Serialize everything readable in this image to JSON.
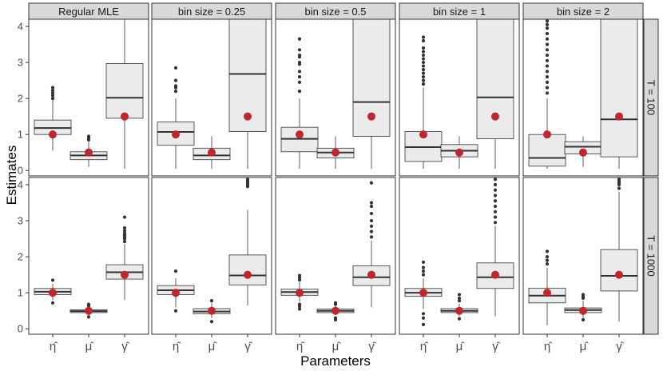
{
  "chart_data": {
    "type": "boxplot",
    "title": "",
    "xlabel": "Parameters",
    "ylabel": "Estimates",
    "ylim": [
      -0.15,
      4.2
    ],
    "yticks": [
      0,
      1,
      2,
      3,
      4
    ],
    "categories": [
      "η̂",
      "μ̂",
      "γ̂"
    ],
    "columns": [
      "Regular MLE",
      "bin size = 0.25",
      "bin size = 0.5",
      "bin size = 1",
      "bin size = 2"
    ],
    "rows": [
      "T = 100",
      "T = 1000"
    ],
    "true_values": [
      1,
      0.5,
      1.5
    ],
    "colors": {
      "panel_bg": "#ffffff",
      "box_fill": "#ebebeb",
      "box_line": "#333333",
      "outlier": "#333333",
      "true_point": "#c0262c",
      "strip_bg": "#d9d9d9",
      "strip_border": "#333333",
      "panel_border": "#333333",
      "axis_text": "#4d4d4d"
    },
    "panels": [
      {
        "row": 0,
        "col": 0,
        "boxes": [
          {
            "q1": 1.0,
            "median": 1.18,
            "q3": 1.4,
            "lo": 0.55,
            "hi": 1.95,
            "outliers": [
              2.0,
              2.08,
              2.15,
              2.22,
              2.3
            ]
          },
          {
            "q1": 0.3,
            "median": 0.42,
            "q3": 0.52,
            "lo": 0.1,
            "hi": 0.8,
            "outliers": [
              0.85,
              0.9,
              0.95
            ]
          },
          {
            "q1": 1.45,
            "median": 2.02,
            "q3": 2.97,
            "lo": 0.05,
            "hi": 4.2,
            "outliers": []
          }
        ]
      },
      {
        "row": 0,
        "col": 1,
        "boxes": [
          {
            "q1": 0.7,
            "median": 1.07,
            "q3": 1.35,
            "lo": 0.05,
            "hi": 2.0,
            "outliers": [
              2.2,
              2.3,
              2.35,
              2.5,
              2.85
            ]
          },
          {
            "q1": 0.3,
            "median": 0.42,
            "q3": 0.62,
            "lo": 0.05,
            "hi": 0.95,
            "outliers": []
          },
          {
            "q1": 1.08,
            "median": 2.68,
            "q3": 4.2,
            "lo": 0.05,
            "hi": 4.2,
            "outliers": []
          }
        ]
      },
      {
        "row": 0,
        "col": 2,
        "boxes": [
          {
            "q1": 0.52,
            "median": 0.88,
            "q3": 1.2,
            "lo": 0.05,
            "hi": 2.0,
            "outliers": [
              2.2,
              2.45,
              2.6,
              2.75,
              2.95,
              3.0,
              3.15,
              3.2,
              3.35,
              3.65
            ]
          },
          {
            "q1": 0.35,
            "median": 0.5,
            "q3": 0.62,
            "lo": 0.05,
            "hi": 0.95,
            "outliers": []
          },
          {
            "q1": 0.95,
            "median": 1.9,
            "q3": 4.2,
            "lo": 0.05,
            "hi": 4.2,
            "outliers": []
          }
        ]
      },
      {
        "row": 0,
        "col": 3,
        "boxes": [
          {
            "q1": 0.25,
            "median": 0.65,
            "q3": 1.08,
            "lo": 0.05,
            "hi": 2.3,
            "outliers": [
              2.4,
              2.5,
              2.6,
              2.7,
              2.8,
              2.9,
              3.0,
              3.1,
              3.2,
              3.3,
              3.4,
              3.6,
              3.7
            ]
          },
          {
            "q1": 0.38,
            "median": 0.55,
            "q3": 0.72,
            "lo": 0.05,
            "hi": 0.95,
            "outliers": []
          },
          {
            "q1": 0.88,
            "median": 2.03,
            "q3": 4.2,
            "lo": 0.05,
            "hi": 4.2,
            "outliers": []
          }
        ]
      },
      {
        "row": 0,
        "col": 4,
        "boxes": [
          {
            "q1": 0.12,
            "median": 0.35,
            "q3": 1.0,
            "lo": 0.05,
            "hi": 2.0,
            "outliers": [
              2.15,
              2.3,
              2.45,
              2.6,
              2.75,
              2.9,
              3.05,
              3.2,
              3.35,
              3.5,
              3.65,
              3.8,
              3.95,
              4.05,
              4.15
            ]
          },
          {
            "q1": 0.46,
            "median": 0.66,
            "q3": 0.8,
            "lo": 0.1,
            "hi": 0.95,
            "outliers": []
          },
          {
            "q1": 0.38,
            "median": 1.42,
            "q3": 4.2,
            "lo": 0.05,
            "hi": 4.2,
            "outliers": []
          }
        ]
      },
      {
        "row": 1,
        "col": 0,
        "boxes": [
          {
            "q1": 0.95,
            "median": 1.03,
            "q3": 1.12,
            "lo": 0.8,
            "hi": 1.25,
            "outliers": [
              0.72,
              1.35
            ]
          },
          {
            "q1": 0.45,
            "median": 0.49,
            "q3": 0.53,
            "lo": 0.38,
            "hi": 0.6,
            "outliers": [
              0.33,
              0.64,
              0.68
            ]
          },
          {
            "q1": 1.38,
            "median": 1.57,
            "q3": 1.78,
            "lo": 0.8,
            "hi": 2.35,
            "outliers": [
              2.42,
              2.5,
              2.55,
              2.6,
              2.65,
              2.72,
              2.8,
              3.1
            ]
          }
        ]
      },
      {
        "row": 1,
        "col": 1,
        "boxes": [
          {
            "q1": 0.95,
            "median": 1.07,
            "q3": 1.2,
            "lo": 0.6,
            "hi": 1.4,
            "outliers": [
              0.5,
              1.6
            ]
          },
          {
            "q1": 0.42,
            "median": 0.48,
            "q3": 0.56,
            "lo": 0.3,
            "hi": 0.72,
            "outliers": [
              0.2,
              0.78
            ]
          },
          {
            "q1": 1.22,
            "median": 1.48,
            "q3": 2.05,
            "lo": 0.65,
            "hi": 3.3,
            "outliers": [
              3.95,
              4.0,
              4.05,
              4.1,
              4.15
            ]
          }
        ]
      },
      {
        "row": 1,
        "col": 2,
        "boxes": [
          {
            "q1": 0.93,
            "median": 1.02,
            "q3": 1.1,
            "lo": 0.75,
            "hi": 1.3,
            "outliers": [
              0.55,
              0.62,
              0.68,
              1.36,
              1.42,
              1.48
            ]
          },
          {
            "q1": 0.45,
            "median": 0.5,
            "q3": 0.55,
            "lo": 0.38,
            "hi": 0.63,
            "outliers": [
              0.25,
              0.3,
              0.68,
              0.72
            ]
          },
          {
            "q1": 1.2,
            "median": 1.43,
            "q3": 1.75,
            "lo": 0.6,
            "hi": 2.45,
            "outliers": [
              2.55,
              2.7,
              2.85,
              3.0,
              3.2,
              3.4,
              3.5,
              4.05
            ]
          }
        ]
      },
      {
        "row": 1,
        "col": 3,
        "boxes": [
          {
            "q1": 0.9,
            "median": 1.0,
            "q3": 1.12,
            "lo": 0.55,
            "hi": 1.4,
            "outliers": [
              0.12,
              0.3,
              0.42,
              1.5,
              1.6,
              1.7,
              1.85
            ]
          },
          {
            "q1": 0.45,
            "median": 0.5,
            "q3": 0.56,
            "lo": 0.35,
            "hi": 0.7,
            "outliers": [
              0.28,
              0.78,
              0.85,
              0.95
            ]
          },
          {
            "q1": 1.12,
            "median": 1.43,
            "q3": 1.83,
            "lo": 0.35,
            "hi": 2.85,
            "outliers": [
              2.95,
              3.1,
              3.25,
              3.4,
              3.55,
              3.7,
              3.85,
              4.0,
              4.15
            ]
          }
        ]
      },
      {
        "row": 1,
        "col": 4,
        "boxes": [
          {
            "q1": 0.72,
            "median": 0.92,
            "q3": 1.13,
            "lo": 0.1,
            "hi": 1.7,
            "outliers": [
              1.8,
              1.9,
              2.0,
              2.15
            ]
          },
          {
            "q1": 0.45,
            "median": 0.52,
            "q3": 0.58,
            "lo": 0.3,
            "hi": 0.78,
            "outliers": [
              0.25,
              0.85,
              0.9,
              0.95
            ]
          },
          {
            "q1": 1.05,
            "median": 1.47,
            "q3": 2.2,
            "lo": 0.2,
            "hi": 3.8,
            "outliers": [
              3.9,
              4.0,
              4.05,
              4.1,
              4.15
            ]
          }
        ]
      }
    ]
  }
}
